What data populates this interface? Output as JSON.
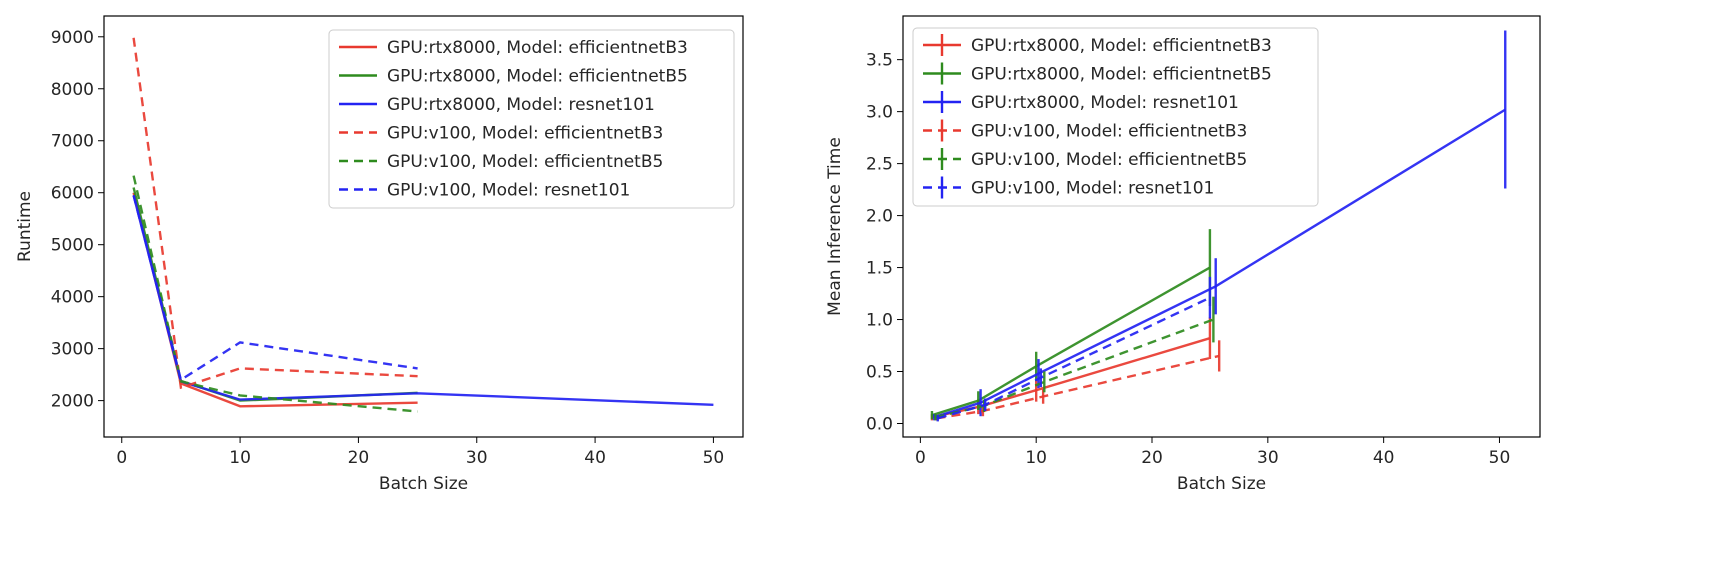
{
  "colors": {
    "red": "#e8392f",
    "green": "#2e8b1e",
    "blue": "#2323f2"
  },
  "series_meta": [
    {
      "label": "GPU:rtx8000, Model: efficientnetB3",
      "color": "red",
      "dash": false
    },
    {
      "label": "GPU:rtx8000, Model: efficientnetB5",
      "color": "green",
      "dash": false
    },
    {
      "label": "GPU:rtx8000, Model: resnet101",
      "color": "blue",
      "dash": false
    },
    {
      "label": "GPU:v100, Model: efficientnetB3",
      "color": "red",
      "dash": true
    },
    {
      "label": "GPU:v100, Model: efficientnetB5",
      "color": "green",
      "dash": true
    },
    {
      "label": "GPU:v100, Model: resnet101",
      "color": "blue",
      "dash": true
    }
  ],
  "chart_data": [
    {
      "type": "line",
      "xlabel": "Batch Size",
      "ylabel": "Runtime",
      "xlim": [
        -1.5,
        52.5
      ],
      "ylim": [
        1300,
        9400
      ],
      "xticks": [
        0,
        10,
        20,
        30,
        40,
        50
      ],
      "yticks": [
        2000,
        3000,
        4000,
        5000,
        6000,
        7000,
        8000,
        9000
      ],
      "legend": "top-right",
      "series": [
        {
          "name": "GPU:rtx8000, Model: efficientnetB3",
          "x": [
            1,
            5,
            10,
            25
          ],
          "y": [
            6000,
            2330,
            1890,
            1960
          ]
        },
        {
          "name": "GPU:rtx8000, Model: efficientnetB5",
          "x": [
            1,
            5,
            10,
            25
          ],
          "y": [
            6100,
            2380,
            2000,
            2150
          ]
        },
        {
          "name": "GPU:rtx8000, Model: resnet101",
          "x": [
            1,
            5,
            10,
            25,
            50
          ],
          "y": [
            5950,
            2370,
            2020,
            2140,
            1920
          ]
        },
        {
          "name": "GPU:v100, Model: efficientnetB3",
          "x": [
            1,
            5,
            10,
            25
          ],
          "y": [
            8980,
            2250,
            2620,
            2470
          ]
        },
        {
          "name": "GPU:v100, Model: efficientnetB5",
          "x": [
            1,
            5,
            10,
            25
          ],
          "y": [
            6330,
            2370,
            2100,
            1790
          ]
        },
        {
          "name": "GPU:v100, Model: resnet101",
          "x": [
            1,
            5,
            10,
            25
          ],
          "y": [
            5950,
            2400,
            3120,
            2620
          ]
        }
      ]
    },
    {
      "type": "line",
      "xlabel": "Batch Size",
      "ylabel": "Mean Inference Time",
      "xlim": [
        -1.5,
        53.5
      ],
      "ylim": [
        -0.13,
        3.92
      ],
      "xticks": [
        0,
        10,
        20,
        30,
        40,
        50
      ],
      "yticks": [
        0.0,
        0.5,
        1.0,
        1.5,
        2.0,
        2.5,
        3.0,
        3.5
      ],
      "legend": "top-left",
      "error_bars": true,
      "series": [
        {
          "name": "GPU:rtx8000, Model: efficientnetB3",
          "x": [
            1,
            5,
            10,
            25
          ],
          "y": [
            0.06,
            0.16,
            0.32,
            0.82
          ],
          "err": [
            0.03,
            0.07,
            0.11,
            0.2
          ]
        },
        {
          "name": "GPU:rtx8000, Model: efficientnetB5",
          "x": [
            1,
            5,
            10,
            25
          ],
          "y": [
            0.08,
            0.22,
            0.55,
            1.5
          ],
          "err": [
            0.04,
            0.09,
            0.14,
            0.37
          ]
        },
        {
          "name": "GPU:rtx8000, Model: resnet101",
          "x": [
            1.2,
            5.2,
            10.2,
            25.5,
            50.5
          ],
          "y": [
            0.06,
            0.2,
            0.48,
            1.32,
            3.02
          ],
          "err": [
            0.03,
            0.13,
            0.14,
            0.27,
            0.76
          ]
        },
        {
          "name": "GPU:v100, Model: efficientnetB3",
          "x": [
            1.4,
            5.4,
            10.6,
            25.8
          ],
          "y": [
            0.05,
            0.12,
            0.26,
            0.65
          ],
          "err": [
            0.02,
            0.05,
            0.07,
            0.15
          ]
        },
        {
          "name": "GPU:v100, Model: efficientnetB5",
          "x": [
            1.3,
            5.5,
            10.7,
            25.3
          ],
          "y": [
            0.06,
            0.17,
            0.4,
            1.0
          ],
          "err": [
            0.03,
            0.06,
            0.1,
            0.22
          ]
        },
        {
          "name": "GPU:v100, Model: resnet101",
          "x": [
            1.5,
            5.6,
            10.4,
            25.0
          ],
          "y": [
            0.05,
            0.18,
            0.44,
            1.21
          ],
          "err": [
            0.03,
            0.06,
            0.09,
            0.2
          ]
        }
      ]
    }
  ]
}
